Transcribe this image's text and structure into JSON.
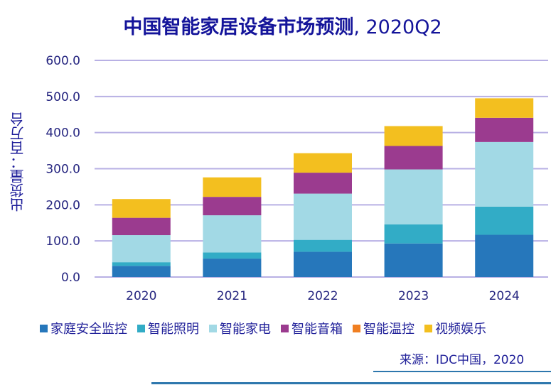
{
  "chart_data": {
    "type": "bar",
    "stacked": true,
    "title": "中国智能家居设备市场预测",
    "title_suffix": ", 2020Q2",
    "xlabel": "",
    "ylabel": "出货量：百万台",
    "ylim": [
      0,
      600
    ],
    "yticks": [
      "0.0",
      "100.0",
      "200.0",
      "300.0",
      "400.0",
      "500.0",
      "600.0"
    ],
    "ytick_values": [
      0,
      100,
      200,
      300,
      400,
      500,
      600
    ],
    "grid": true,
    "legend_position": "bottom",
    "categories": [
      "2020",
      "2021",
      "2022",
      "2023",
      "2024"
    ],
    "series": [
      {
        "name": "家庭安全监控",
        "color": "#2677bb",
        "values": [
          31,
          51,
          70,
          93,
          117
        ]
      },
      {
        "name": "智能照明",
        "color": "#32acc6",
        "values": [
          10,
          17,
          33,
          53,
          78
        ]
      },
      {
        "name": "智能家电",
        "color": "#a2d9e5",
        "values": [
          75,
          103,
          128,
          152,
          179
        ]
      },
      {
        "name": "智能音箱",
        "color": "#9b3b8f",
        "values": [
          48,
          51,
          58,
          65,
          67
        ]
      },
      {
        "name": "智能温控",
        "color": "#f07f22",
        "values": [
          0,
          0,
          0,
          0,
          0
        ]
      },
      {
        "name": "视频娱乐",
        "color": "#f3bf1f",
        "values": [
          52,
          54,
          54,
          55,
          54
        ]
      }
    ],
    "source": "来源：IDC中国，2020"
  }
}
